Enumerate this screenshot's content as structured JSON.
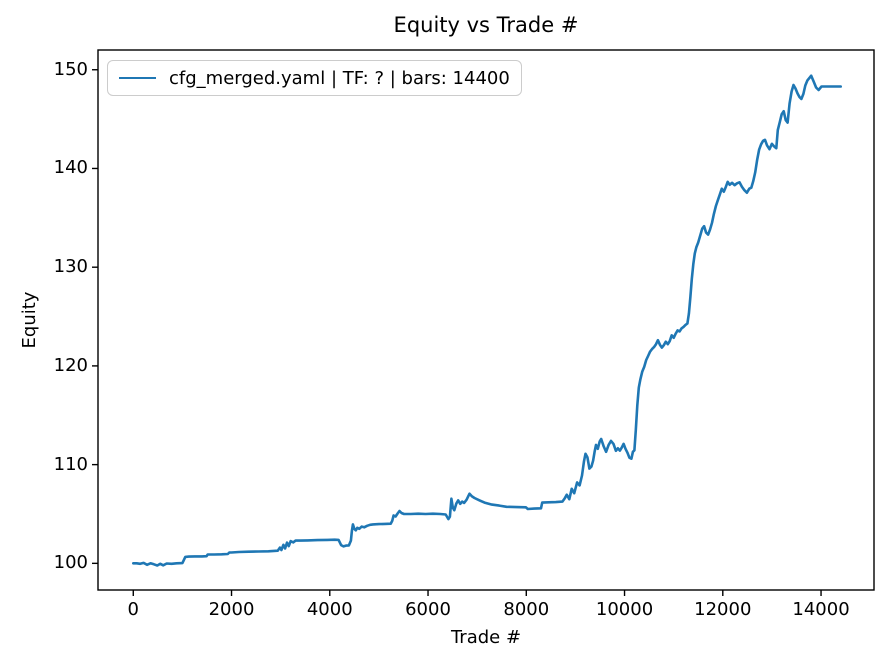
{
  "chart_data": {
    "type": "line",
    "title": "Equity vs Trade #",
    "xlabel": "Trade #",
    "ylabel": "Equity",
    "xticks": [
      0,
      2000,
      4000,
      6000,
      8000,
      10000,
      12000,
      14000
    ],
    "yticks": [
      100,
      110,
      120,
      130,
      140,
      150
    ],
    "xlim": [
      -718,
      15078
    ],
    "ylim": [
      97.3,
      152.0
    ],
    "grid": false,
    "background": "#ffffff",
    "spine_color": "#000000",
    "legend": {
      "position": "upper left",
      "label": "cfg_merged.yaml | TF: ? | bars: 14400"
    },
    "series": [
      {
        "name": "cfg_merged.yaml | TF: ? | bars: 14400",
        "color": "#1f77b4",
        "points": [
          [
            0,
            100.0
          ],
          [
            70,
            100.0
          ],
          [
            140,
            99.95
          ],
          [
            210,
            100.05
          ],
          [
            280,
            99.85
          ],
          [
            350,
            100.0
          ],
          [
            420,
            99.9
          ],
          [
            490,
            99.78
          ],
          [
            550,
            99.95
          ],
          [
            610,
            99.8
          ],
          [
            680,
            99.98
          ],
          [
            780,
            99.95
          ],
          [
            880,
            100.0
          ],
          [
            1000,
            100.02
          ],
          [
            1030,
            100.35
          ],
          [
            1060,
            100.65
          ],
          [
            1130,
            100.68
          ],
          [
            1250,
            100.7
          ],
          [
            1400,
            100.7
          ],
          [
            1490,
            100.72
          ],
          [
            1515,
            100.9
          ],
          [
            1650,
            100.9
          ],
          [
            1800,
            100.92
          ],
          [
            1925,
            100.95
          ],
          [
            1955,
            101.1
          ],
          [
            2000,
            101.1
          ],
          [
            2150,
            101.15
          ],
          [
            2350,
            101.18
          ],
          [
            2550,
            101.2
          ],
          [
            2750,
            101.22
          ],
          [
            2940,
            101.28
          ],
          [
            2985,
            101.6
          ],
          [
            3015,
            101.35
          ],
          [
            3055,
            101.88
          ],
          [
            3090,
            101.5
          ],
          [
            3130,
            102.1
          ],
          [
            3165,
            101.75
          ],
          [
            3205,
            102.25
          ],
          [
            3255,
            102.12
          ],
          [
            3305,
            102.3
          ],
          [
            3400,
            102.3
          ],
          [
            3550,
            102.32
          ],
          [
            3750,
            102.35
          ],
          [
            3950,
            102.38
          ],
          [
            4100,
            102.4
          ],
          [
            4180,
            102.38
          ],
          [
            4230,
            101.85
          ],
          [
            4280,
            101.72
          ],
          [
            4330,
            101.8
          ],
          [
            4390,
            101.82
          ],
          [
            4430,
            102.3
          ],
          [
            4450,
            103.3
          ],
          [
            4470,
            103.95
          ],
          [
            4500,
            103.5
          ],
          [
            4530,
            103.35
          ],
          [
            4560,
            103.6
          ],
          [
            4600,
            103.5
          ],
          [
            4650,
            103.72
          ],
          [
            4700,
            103.65
          ],
          [
            4760,
            103.8
          ],
          [
            4820,
            103.9
          ],
          [
            4880,
            103.95
          ],
          [
            5000,
            103.98
          ],
          [
            5120,
            104.0
          ],
          [
            5240,
            104.02
          ],
          [
            5270,
            104.3
          ],
          [
            5300,
            104.85
          ],
          [
            5340,
            104.75
          ],
          [
            5380,
            105.05
          ],
          [
            5420,
            105.3
          ],
          [
            5460,
            105.1
          ],
          [
            5510,
            105.0
          ],
          [
            5650,
            105.0
          ],
          [
            5800,
            105.03
          ],
          [
            5950,
            105.0
          ],
          [
            6100,
            105.03
          ],
          [
            6250,
            105.0
          ],
          [
            6360,
            104.95
          ],
          [
            6415,
            104.48
          ],
          [
            6445,
            104.72
          ],
          [
            6475,
            106.55
          ],
          [
            6505,
            105.65
          ],
          [
            6535,
            105.38
          ],
          [
            6575,
            106.05
          ],
          [
            6615,
            106.38
          ],
          [
            6655,
            106.02
          ],
          [
            6695,
            106.25
          ],
          [
            6735,
            106.12
          ],
          [
            6785,
            106.45
          ],
          [
            6845,
            107.05
          ],
          [
            6895,
            106.78
          ],
          [
            6945,
            106.62
          ],
          [
            7050,
            106.38
          ],
          [
            7150,
            106.15
          ],
          [
            7300,
            105.95
          ],
          [
            7450,
            105.85
          ],
          [
            7600,
            105.73
          ],
          [
            7800,
            105.7
          ],
          [
            7990,
            105.68
          ],
          [
            8030,
            105.5
          ],
          [
            8160,
            105.55
          ],
          [
            8300,
            105.58
          ],
          [
            8325,
            106.15
          ],
          [
            8450,
            106.18
          ],
          [
            8600,
            106.2
          ],
          [
            8735,
            106.25
          ],
          [
            8785,
            106.6
          ],
          [
            8825,
            106.95
          ],
          [
            8875,
            106.5
          ],
          [
            8925,
            107.55
          ],
          [
            8975,
            107.1
          ],
          [
            9035,
            108.2
          ],
          [
            9085,
            107.9
          ],
          [
            9135,
            108.9
          ],
          [
            9175,
            110.35
          ],
          [
            9205,
            111.1
          ],
          [
            9245,
            110.75
          ],
          [
            9285,
            109.6
          ],
          [
            9325,
            109.8
          ],
          [
            9360,
            110.4
          ],
          [
            9390,
            111.3
          ],
          [
            9420,
            112.0
          ],
          [
            9455,
            111.6
          ],
          [
            9495,
            112.35
          ],
          [
            9525,
            112.6
          ],
          [
            9575,
            111.85
          ],
          [
            9625,
            111.3
          ],
          [
            9675,
            112.0
          ],
          [
            9725,
            112.4
          ],
          [
            9775,
            112.1
          ],
          [
            9825,
            111.4
          ],
          [
            9865,
            111.65
          ],
          [
            9905,
            111.42
          ],
          [
            9940,
            111.7
          ],
          [
            9980,
            112.1
          ],
          [
            10020,
            111.6
          ],
          [
            10060,
            111.2
          ],
          [
            10100,
            110.7
          ],
          [
            10140,
            110.6
          ],
          [
            10170,
            111.3
          ],
          [
            10200,
            111.45
          ],
          [
            10230,
            113.5
          ],
          [
            10260,
            116.0
          ],
          [
            10290,
            117.8
          ],
          [
            10320,
            118.6
          ],
          [
            10360,
            119.4
          ],
          [
            10400,
            119.9
          ],
          [
            10440,
            120.6
          ],
          [
            10480,
            121.0
          ],
          [
            10520,
            121.45
          ],
          [
            10560,
            121.7
          ],
          [
            10600,
            121.9
          ],
          [
            10640,
            122.2
          ],
          [
            10680,
            122.6
          ],
          [
            10720,
            122.15
          ],
          [
            10760,
            121.85
          ],
          [
            10800,
            122.1
          ],
          [
            10840,
            122.45
          ],
          [
            10880,
            122.2
          ],
          [
            10920,
            122.5
          ],
          [
            10960,
            123.1
          ],
          [
            11000,
            122.85
          ],
          [
            11040,
            123.25
          ],
          [
            11080,
            123.6
          ],
          [
            11120,
            123.5
          ],
          [
            11160,
            123.8
          ],
          [
            11200,
            123.95
          ],
          [
            11240,
            124.15
          ],
          [
            11280,
            124.3
          ],
          [
            11310,
            125.3
          ],
          [
            11340,
            127.0
          ],
          [
            11370,
            128.8
          ],
          [
            11400,
            130.3
          ],
          [
            11430,
            131.4
          ],
          [
            11460,
            132.0
          ],
          [
            11500,
            132.5
          ],
          [
            11540,
            133.2
          ],
          [
            11580,
            133.9
          ],
          [
            11620,
            134.15
          ],
          [
            11660,
            133.5
          ],
          [
            11700,
            133.3
          ],
          [
            11740,
            133.8
          ],
          [
            11780,
            134.5
          ],
          [
            11820,
            135.4
          ],
          [
            11860,
            136.2
          ],
          [
            11900,
            136.8
          ],
          [
            11940,
            137.35
          ],
          [
            11980,
            137.95
          ],
          [
            12020,
            137.65
          ],
          [
            12060,
            138.1
          ],
          [
            12100,
            138.65
          ],
          [
            12140,
            138.35
          ],
          [
            12190,
            138.55
          ],
          [
            12240,
            138.3
          ],
          [
            12290,
            138.5
          ],
          [
            12340,
            138.6
          ],
          [
            12390,
            138.15
          ],
          [
            12440,
            137.8
          ],
          [
            12490,
            137.55
          ],
          [
            12540,
            137.95
          ],
          [
            12580,
            138.05
          ],
          [
            12620,
            138.7
          ],
          [
            12660,
            139.6
          ],
          [
            12700,
            140.9
          ],
          [
            12740,
            141.9
          ],
          [
            12780,
            142.45
          ],
          [
            12820,
            142.8
          ],
          [
            12860,
            142.9
          ],
          [
            12900,
            142.35
          ],
          [
            12950,
            141.95
          ],
          [
            13000,
            142.5
          ],
          [
            13050,
            142.2
          ],
          [
            13090,
            142.05
          ],
          [
            13120,
            143.9
          ],
          [
            13160,
            144.7
          ],
          [
            13200,
            145.5
          ],
          [
            13240,
            145.8
          ],
          [
            13280,
            144.9
          ],
          [
            13320,
            144.65
          ],
          [
            13360,
            146.6
          ],
          [
            13400,
            147.8
          ],
          [
            13440,
            148.45
          ],
          [
            13480,
            148.1
          ],
          [
            13520,
            147.6
          ],
          [
            13560,
            147.25
          ],
          [
            13600,
            147.05
          ],
          [
            13640,
            147.55
          ],
          [
            13680,
            148.4
          ],
          [
            13720,
            148.9
          ],
          [
            13760,
            149.15
          ],
          [
            13800,
            149.4
          ],
          [
            13850,
            148.8
          ],
          [
            13900,
            148.2
          ],
          [
            13950,
            147.95
          ],
          [
            14010,
            148.3
          ],
          [
            14150,
            148.3
          ],
          [
            14400,
            148.3
          ]
        ]
      }
    ]
  }
}
